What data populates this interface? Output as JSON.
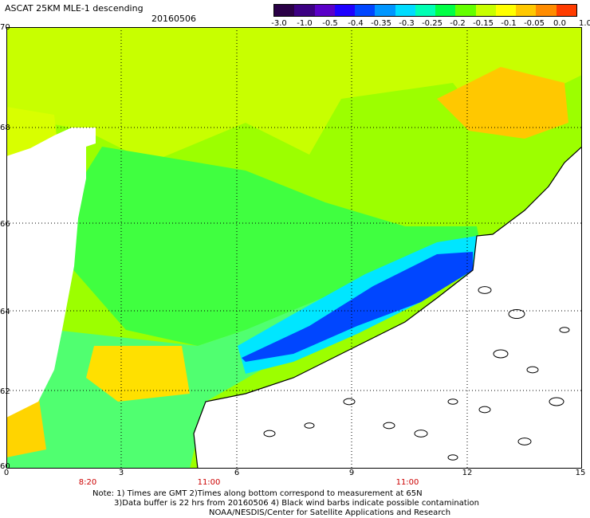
{
  "title": "ASCAT 25KM MLE-1 descending",
  "date": "20160506",
  "colorbar": {
    "colors": [
      "#2a0046",
      "#3c0082",
      "#5a00c8",
      "#1e00ff",
      "#0046ff",
      "#0096ff",
      "#00dcff",
      "#00ffb4",
      "#00ff46",
      "#64ff00",
      "#c8ff00",
      "#ffff00",
      "#ffc800",
      "#ff8c00",
      "#ff3c00"
    ],
    "tick_labels": [
      "-3.0",
      "-1.0",
      "-0.5",
      "-0.4",
      "-0.35",
      "-0.3",
      "-0.25",
      "-0.2",
      "-0.15",
      "-0.1",
      "-0.05",
      "0.0",
      "1.0"
    ]
  },
  "map": {
    "lat_labels": [
      "70",
      "68",
      "66",
      "64",
      "62",
      "60"
    ],
    "lon_labels": [
      "0",
      "3",
      "6",
      "9",
      "12",
      "15"
    ],
    "time_labels": [
      "8:20",
      "11:00",
      "11:00"
    ],
    "land_color": "#ffffff",
    "coast_color": "#000000",
    "grid_color": "#000000"
  },
  "notes": {
    "line1": "Note: 1) Times are GMT 2)Times along bottom correspond to measurement at 65N",
    "line2": "3)Data buffer is 22 hrs from 20160506 4) Black wind barbs indicate possible contamination",
    "line3": "NOAA/NESDIS/Center for Satellite Applications and Research"
  }
}
